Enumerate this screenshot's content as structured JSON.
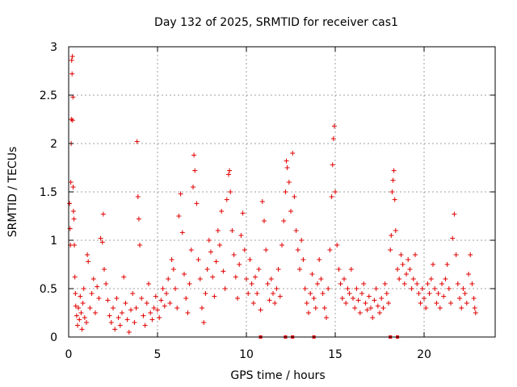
{
  "chart_data": {
    "type": "scatter",
    "title": "Day 132 of 2025, SRMTID for receiver cas1",
    "xlabel": "GPS time / hours",
    "ylabel": "SRMTID / TECUs",
    "xlim": [
      0,
      24
    ],
    "ylim": [
      0,
      3
    ],
    "x_ticks": [
      0,
      5,
      10,
      15,
      20
    ],
    "y_ticks": [
      0,
      0.5,
      1,
      1.5,
      2,
      2.5,
      3
    ],
    "x_tick_labels": [
      "0",
      "5",
      "10",
      "15",
      "20"
    ],
    "y_tick_labels": [
      "0",
      "0.5",
      "1",
      "1.5",
      "2",
      "2.5",
      "3"
    ],
    "grid": true,
    "marker": "plus",
    "color": "#e00000",
    "series": [
      {
        "name": "SRMTID",
        "points": [
          [
            0.05,
            1.38
          ],
          [
            0.08,
            1.12
          ],
          [
            0.1,
            0.95
          ],
          [
            0.12,
            1.6
          ],
          [
            0.14,
            2.0
          ],
          [
            0.15,
            2.25
          ],
          [
            0.17,
            2.86
          ],
          [
            0.19,
            2.72
          ],
          [
            0.21,
            2.9
          ],
          [
            0.22,
            2.24
          ],
          [
            0.24,
            2.48
          ],
          [
            0.25,
            1.55
          ],
          [
            0.27,
            1.3
          ],
          [
            0.3,
            1.22
          ],
          [
            0.32,
            0.95
          ],
          [
            0.35,
            0.62
          ],
          [
            0.38,
            0.45
          ],
          [
            0.4,
            0.32
          ],
          [
            0.45,
            0.22
          ],
          [
            0.5,
            0.12
          ],
          [
            0.55,
            0.3
          ],
          [
            0.6,
            0.18
          ],
          [
            0.65,
            0.42
          ],
          [
            0.7,
            0.25
          ],
          [
            0.75,
            0.08
          ],
          [
            0.8,
            0.35
          ],
          [
            0.85,
            0.5
          ],
          [
            0.9,
            0.2
          ],
          [
            1.0,
            0.15
          ],
          [
            1.05,
            0.85
          ],
          [
            1.1,
            0.78
          ],
          [
            1.2,
            0.3
          ],
          [
            1.3,
            0.45
          ],
          [
            1.4,
            0.6
          ],
          [
            1.5,
            0.25
          ],
          [
            1.6,
            0.52
          ],
          [
            1.7,
            0.4
          ],
          [
            1.8,
            1.02
          ],
          [
            1.9,
            0.98
          ],
          [
            1.95,
            1.27
          ],
          [
            2.0,
            0.7
          ],
          [
            2.1,
            0.55
          ],
          [
            2.2,
            0.38
          ],
          [
            2.3,
            0.22
          ],
          [
            2.4,
            0.15
          ],
          [
            2.5,
            0.3
          ],
          [
            2.6,
            0.08
          ],
          [
            2.7,
            0.4
          ],
          [
            2.8,
            0.2
          ],
          [
            2.9,
            0.12
          ],
          [
            3.0,
            0.25
          ],
          [
            3.1,
            0.62
          ],
          [
            3.2,
            0.35
          ],
          [
            3.3,
            0.18
          ],
          [
            3.4,
            0.05
          ],
          [
            3.5,
            0.28
          ],
          [
            3.6,
            0.45
          ],
          [
            3.7,
            0.15
          ],
          [
            3.8,
            0.3
          ],
          [
            3.85,
            2.02
          ],
          [
            3.9,
            1.45
          ],
          [
            3.95,
            1.22
          ],
          [
            4.0,
            0.95
          ],
          [
            4.1,
            0.4
          ],
          [
            4.2,
            0.22
          ],
          [
            4.3,
            0.12
          ],
          [
            4.4,
            0.35
          ],
          [
            4.5,
            0.55
          ],
          [
            4.6,
            0.25
          ],
          [
            4.7,
            0.18
          ],
          [
            4.8,
            0.3
          ],
          [
            4.9,
            0.42
          ],
          [
            5.0,
            0.28
          ],
          [
            5.1,
            0.2
          ],
          [
            5.2,
            0.38
          ],
          [
            5.3,
            0.5
          ],
          [
            5.4,
            0.32
          ],
          [
            5.5,
            0.45
          ],
          [
            5.6,
            0.6
          ],
          [
            5.7,
            0.35
          ],
          [
            5.8,
            0.8
          ],
          [
            5.9,
            0.7
          ],
          [
            6.0,
            0.5
          ],
          [
            6.1,
            0.3
          ],
          [
            6.2,
            1.25
          ],
          [
            6.3,
            1.48
          ],
          [
            6.4,
            1.08
          ],
          [
            6.5,
            0.65
          ],
          [
            6.6,
            0.4
          ],
          [
            6.7,
            0.25
          ],
          [
            6.8,
            0.55
          ],
          [
            6.9,
            0.9
          ],
          [
            7.0,
            1.55
          ],
          [
            7.05,
            1.88
          ],
          [
            7.1,
            1.72
          ],
          [
            7.2,
            1.38
          ],
          [
            7.3,
            0.8
          ],
          [
            7.4,
            0.6
          ],
          [
            7.5,
            0.3
          ],
          [
            7.6,
            0.15
          ],
          [
            7.7,
            0.45
          ],
          [
            7.8,
            0.7
          ],
          [
            7.9,
            1.0
          ],
          [
            8.0,
            0.88
          ],
          [
            8.1,
            0.62
          ],
          [
            8.2,
            0.42
          ],
          [
            8.3,
            0.78
          ],
          [
            8.4,
            1.1
          ],
          [
            8.5,
            0.95
          ],
          [
            8.6,
            1.3
          ],
          [
            8.7,
            0.68
          ],
          [
            8.8,
            0.5
          ],
          [
            8.9,
            1.42
          ],
          [
            9.0,
            1.68
          ],
          [
            9.05,
            1.72
          ],
          [
            9.1,
            1.5
          ],
          [
            9.2,
            1.1
          ],
          [
            9.3,
            0.85
          ],
          [
            9.4,
            0.62
          ],
          [
            9.5,
            0.4
          ],
          [
            9.6,
            0.75
          ],
          [
            9.7,
            1.05
          ],
          [
            9.8,
            1.28
          ],
          [
            9.9,
            0.9
          ],
          [
            10.0,
            0.6
          ],
          [
            10.1,
            0.45
          ],
          [
            10.2,
            0.8
          ],
          [
            10.3,
            0.55
          ],
          [
            10.4,
            0.35
          ],
          [
            10.5,
            0.62
          ],
          [
            10.6,
            0.45
          ],
          [
            10.7,
            0.7
          ],
          [
            10.8,
            0.28
          ],
          [
            10.9,
            1.4
          ],
          [
            11.0,
            1.2
          ],
          [
            11.1,
            0.9
          ],
          [
            11.2,
            0.55
          ],
          [
            11.3,
            0.38
          ],
          [
            11.4,
            0.6
          ],
          [
            11.5,
            0.45
          ],
          [
            11.6,
            0.35
          ],
          [
            11.7,
            0.5
          ],
          [
            11.8,
            0.7
          ],
          [
            11.9,
            0.42
          ],
          [
            12.0,
            0.95
          ],
          [
            12.1,
            1.2
          ],
          [
            12.2,
            1.5
          ],
          [
            12.25,
            1.82
          ],
          [
            12.3,
            1.75
          ],
          [
            12.4,
            1.6
          ],
          [
            12.5,
            1.3
          ],
          [
            12.6,
            1.9
          ],
          [
            12.7,
            1.45
          ],
          [
            12.8,
            1.1
          ],
          [
            12.9,
            0.9
          ],
          [
            13.0,
            0.7
          ],
          [
            13.1,
            1.0
          ],
          [
            13.2,
            0.8
          ],
          [
            13.3,
            0.5
          ],
          [
            13.4,
            0.35
          ],
          [
            13.5,
            0.25
          ],
          [
            13.6,
            0.45
          ],
          [
            13.7,
            0.65
          ],
          [
            13.8,
            0.4
          ],
          [
            13.9,
            0.3
          ],
          [
            14.0,
            0.55
          ],
          [
            14.1,
            0.8
          ],
          [
            14.2,
            0.6
          ],
          [
            14.3,
            0.45
          ],
          [
            14.4,
            0.3
          ],
          [
            14.5,
            0.2
          ],
          [
            14.6,
            0.5
          ],
          [
            14.7,
            0.9
          ],
          [
            14.8,
            1.45
          ],
          [
            14.85,
            1.78
          ],
          [
            14.9,
            2.05
          ],
          [
            14.95,
            2.18
          ],
          [
            15.0,
            1.5
          ],
          [
            15.1,
            0.95
          ],
          [
            15.2,
            0.7
          ],
          [
            15.3,
            0.55
          ],
          [
            15.4,
            0.4
          ],
          [
            15.5,
            0.6
          ],
          [
            15.6,
            0.35
          ],
          [
            15.7,
            0.5
          ],
          [
            15.8,
            0.45
          ],
          [
            15.9,
            0.7
          ],
          [
            16.0,
            0.4
          ],
          [
            16.1,
            0.3
          ],
          [
            16.2,
            0.5
          ],
          [
            16.3,
            0.38
          ],
          [
            16.4,
            0.25
          ],
          [
            16.5,
            0.45
          ],
          [
            16.6,
            0.55
          ],
          [
            16.7,
            0.35
          ],
          [
            16.8,
            0.28
          ],
          [
            16.9,
            0.42
          ],
          [
            17.0,
            0.3
          ],
          [
            17.1,
            0.2
          ],
          [
            17.2,
            0.38
          ],
          [
            17.3,
            0.5
          ],
          [
            17.4,
            0.32
          ],
          [
            17.5,
            0.25
          ],
          [
            17.6,
            0.4
          ],
          [
            17.7,
            0.3
          ],
          [
            17.8,
            0.55
          ],
          [
            17.9,
            0.45
          ],
          [
            18.0,
            0.35
          ],
          [
            18.1,
            0.9
          ],
          [
            18.15,
            1.05
          ],
          [
            18.2,
            1.5
          ],
          [
            18.25,
            1.62
          ],
          [
            18.3,
            1.72
          ],
          [
            18.35,
            1.42
          ],
          [
            18.4,
            1.1
          ],
          [
            18.5,
            0.7
          ],
          [
            18.6,
            0.6
          ],
          [
            18.7,
            0.85
          ],
          [
            18.8,
            0.75
          ],
          [
            18.9,
            0.55
          ],
          [
            19.0,
            0.65
          ],
          [
            19.1,
            0.8
          ],
          [
            19.2,
            0.7
          ],
          [
            19.3,
            0.5
          ],
          [
            19.4,
            0.6
          ],
          [
            19.5,
            0.85
          ],
          [
            19.6,
            0.55
          ],
          [
            19.7,
            0.45
          ],
          [
            19.8,
            0.35
          ],
          [
            19.9,
            0.5
          ],
          [
            20.0,
            0.4
          ],
          [
            20.1,
            0.3
          ],
          [
            20.2,
            0.55
          ],
          [
            20.3,
            0.45
          ],
          [
            20.4,
            0.6
          ],
          [
            20.5,
            0.75
          ],
          [
            20.6,
            0.5
          ],
          [
            20.7,
            0.35
          ],
          [
            20.8,
            0.45
          ],
          [
            20.9,
            0.3
          ],
          [
            21.0,
            0.55
          ],
          [
            21.1,
            0.42
          ],
          [
            21.2,
            0.6
          ],
          [
            21.3,
            0.75
          ],
          [
            21.4,
            0.5
          ],
          [
            21.5,
            0.35
          ],
          [
            21.6,
            1.02
          ],
          [
            21.7,
            1.27
          ],
          [
            21.8,
            0.85
          ],
          [
            21.9,
            0.55
          ],
          [
            22.0,
            0.4
          ],
          [
            22.1,
            0.3
          ],
          [
            22.2,
            0.5
          ],
          [
            22.3,
            0.45
          ],
          [
            22.4,
            0.35
          ],
          [
            22.5,
            0.65
          ],
          [
            22.6,
            0.85
          ],
          [
            22.7,
            0.55
          ],
          [
            22.8,
            0.4
          ],
          [
            22.85,
            0.3
          ],
          [
            22.9,
            0.25
          ]
        ]
      }
    ],
    "baseline_markers": [
      10.8,
      12.2,
      12.6,
      13.8,
      18.1,
      18.5
    ]
  }
}
